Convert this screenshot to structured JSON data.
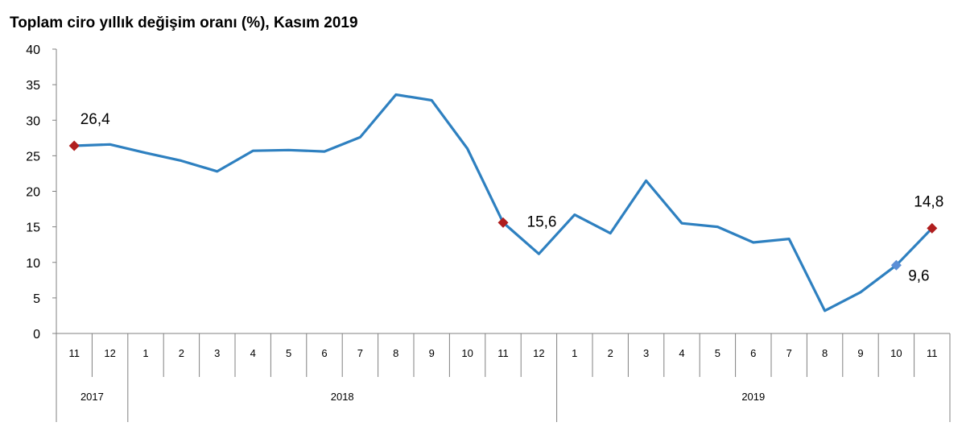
{
  "chart_data": {
    "type": "line",
    "title": "Toplam ciro yıllık değişim oranı (%), Kasım 2019",
    "xlabel": "",
    "ylabel": "",
    "ylim": [
      0,
      40
    ],
    "y_ticks": [
      0,
      5,
      10,
      15,
      20,
      25,
      30,
      35,
      40
    ],
    "grid": false,
    "categories": [
      "11",
      "12",
      "1",
      "2",
      "3",
      "4",
      "5",
      "6",
      "7",
      "8",
      "9",
      "10",
      "11",
      "12",
      "1",
      "2",
      "3",
      "4",
      "5",
      "6",
      "7",
      "8",
      "9",
      "10",
      "11"
    ],
    "year_groups": [
      {
        "label": "2017",
        "count": 2
      },
      {
        "label": "2018",
        "count": 12
      },
      {
        "label": "2019",
        "count": 11
      }
    ],
    "series": [
      {
        "values": [
          26.4,
          26.6,
          25.4,
          24.3,
          22.8,
          25.7,
          25.8,
          25.6,
          27.6,
          33.6,
          32.8,
          26.0,
          15.6,
          11.2,
          16.7,
          14.1,
          21.5,
          15.5,
          15.0,
          12.8,
          13.3,
          3.2,
          5.8,
          9.6,
          14.8
        ],
        "color": "#2E80C0"
      }
    ],
    "annotations": [
      {
        "index": 0,
        "label": "26,4",
        "color": "#B01E1E"
      },
      {
        "index": 12,
        "label": "15,6",
        "color": "#B01E1E"
      },
      {
        "index": 23,
        "label": "9,6",
        "color": "#5B8FD6"
      },
      {
        "index": 24,
        "label": "14,8",
        "color": "#B01E1E"
      }
    ]
  }
}
